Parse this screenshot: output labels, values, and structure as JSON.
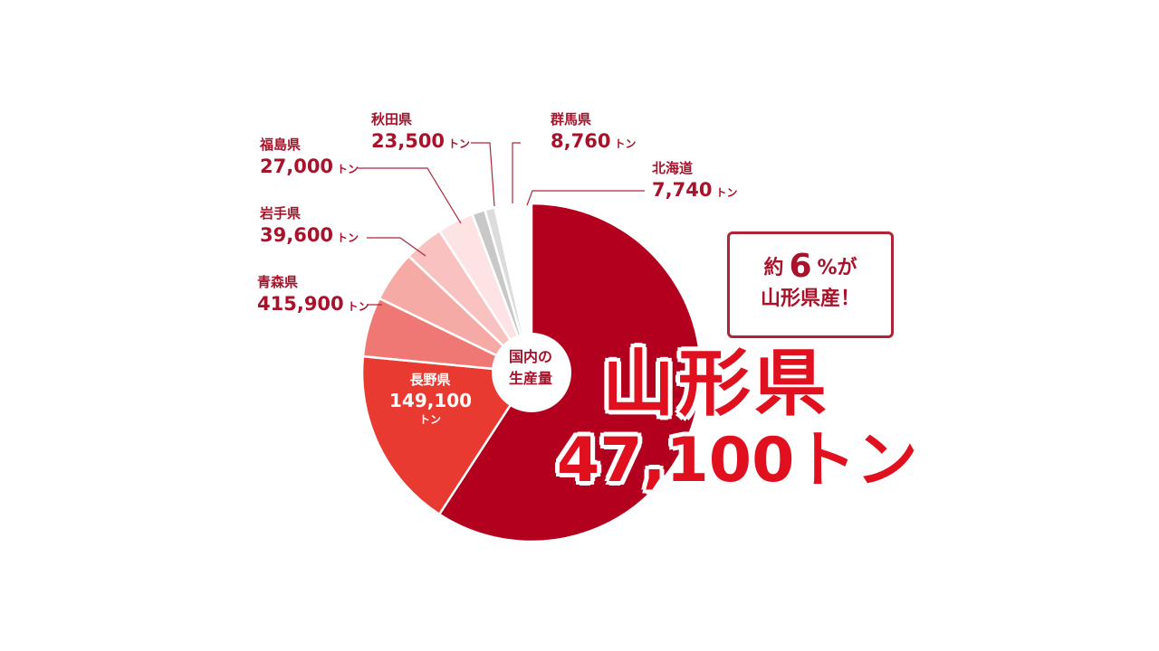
{
  "chart_data": {
    "type": "pie",
    "title": "",
    "center_label": [
      "国内の",
      "生産量"
    ],
    "unit": "トン",
    "slices": [
      {
        "name": "山形県",
        "value": 47100,
        "value_text": "47,100",
        "color": "#b3001e"
      },
      {
        "name": "長野県",
        "value": 149100,
        "value_text": "149,100",
        "color": "#e83a30"
      },
      {
        "name": "青森県",
        "value": 415900,
        "value_text": "415,900",
        "color": "#f07874"
      },
      {
        "name": "岩手県",
        "value": 39600,
        "value_text": "39,600",
        "color": "#f6aaa6"
      },
      {
        "name": "福島県",
        "value": 27000,
        "value_text": "27,000",
        "color": "#f9c2c0"
      },
      {
        "name": "秋田県",
        "value": 23500,
        "value_text": "23,500",
        "color": "#fde3e3"
      },
      {
        "name": "群馬県",
        "value": 8760,
        "value_text": "8,760",
        "color": "#c8c8c8"
      },
      {
        "name": "北海道",
        "value": 7740,
        "value_text": "7,740",
        "color": "#dcdcdc"
      }
    ]
  },
  "highlight": {
    "prefecture": "山形県",
    "amount": "47,100トン",
    "share_prefix": "約",
    "share_value": "6",
    "share_suffix": "%が",
    "share_line2": "山形県産！"
  },
  "colors": {
    "accent": "#e0101e",
    "label": "#a8122a",
    "leader": "#b0243a"
  }
}
